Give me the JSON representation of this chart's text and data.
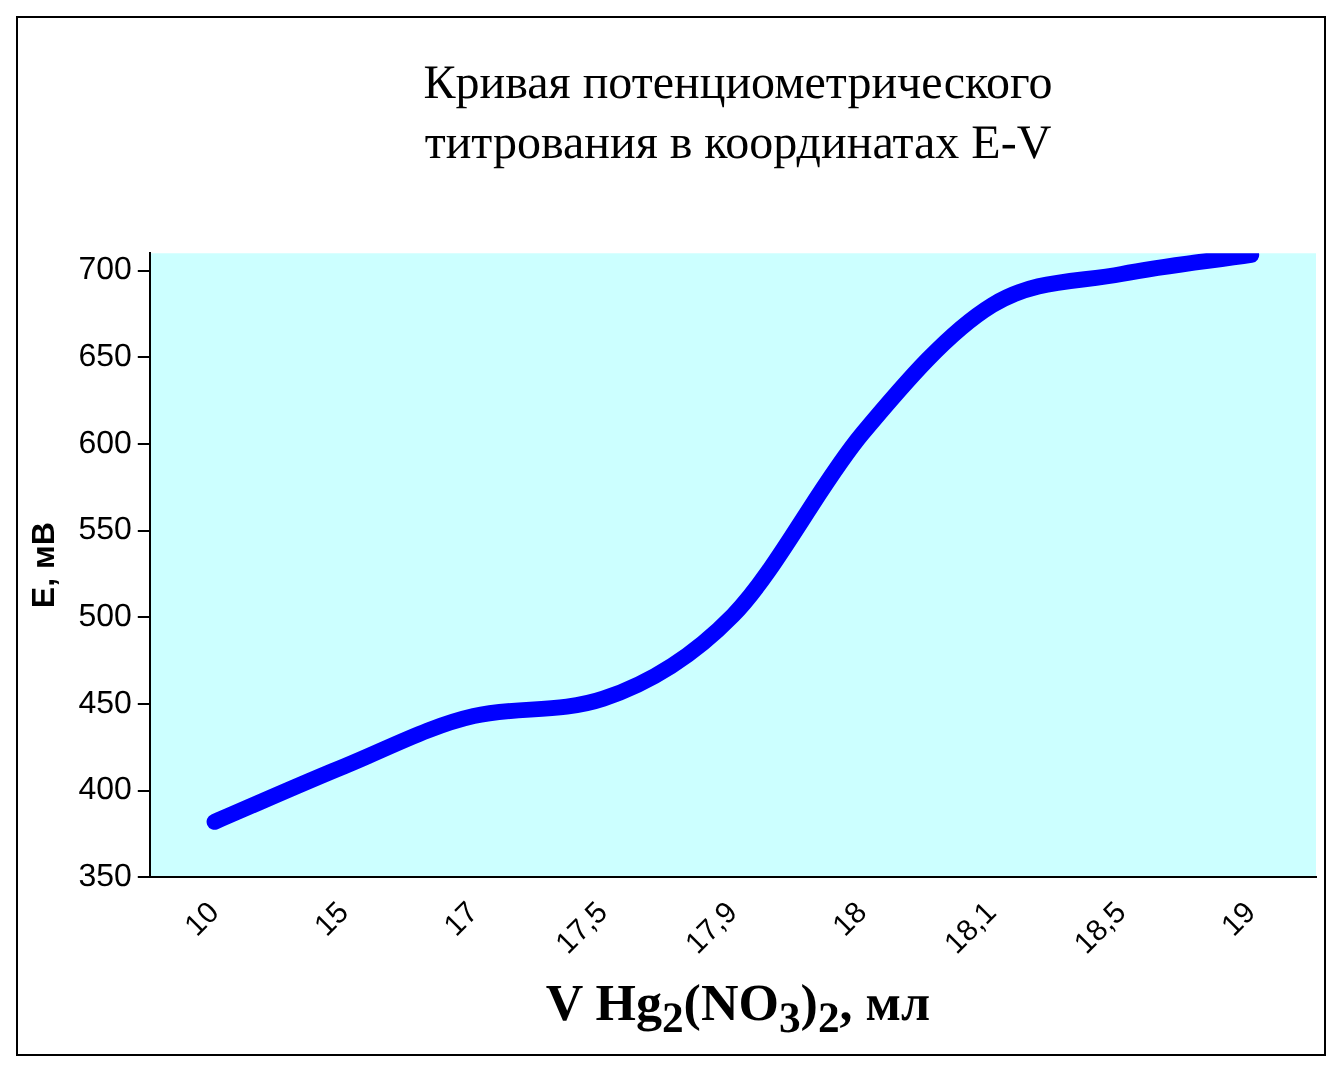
{
  "chart_data": {
    "type": "line",
    "title": "Кривая потенциометрического\nтитрования в координатах E-V",
    "xlabel": "V Hg$_{2}$(NO$_{3}$)$_{2}$, мл",
    "ylabel": "E, мВ",
    "categories": [
      "10",
      "15",
      "17",
      "17,5",
      "17,9",
      "18",
      "18,1",
      "18,5",
      "19"
    ],
    "series": [
      {
        "color": "#0000ff",
        "values": [
          382,
          414,
          443,
          453,
          501,
          606,
          680,
          698,
          709
        ]
      }
    ],
    "ylim": [
      350,
      710
    ],
    "yticks": [
      350,
      400,
      450,
      500,
      550,
      600,
      650,
      700
    ],
    "grid": false,
    "legend": false,
    "marker": "none",
    "line_style": "solid"
  }
}
